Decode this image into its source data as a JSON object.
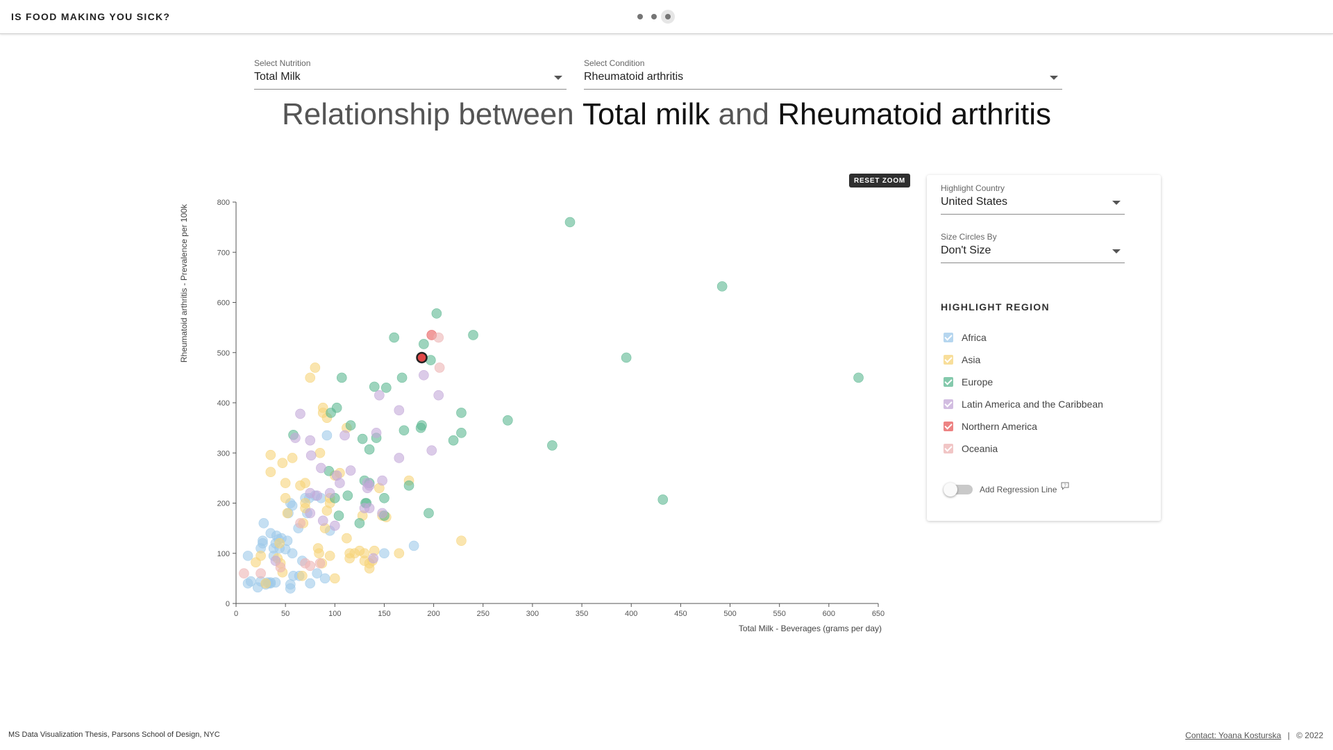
{
  "header": {
    "title": "IS FOOD MAKING YOU SICK?",
    "pager": {
      "count": 3,
      "active": 3
    }
  },
  "controls": {
    "nutrition": {
      "label": "Select Nutrition",
      "value": "Total Milk"
    },
    "condition": {
      "label": "Select Condition",
      "value": "Rheumatoid arthritis"
    }
  },
  "headline": {
    "prefix": "Relationship between",
    "nutrition": "Total milk",
    "joiner": "and",
    "condition": "Rheumatoid arthritis"
  },
  "reset_zoom_label": "RESET ZOOM",
  "panel": {
    "highlight_country": {
      "label": "Highlight Country",
      "value": "United States"
    },
    "size_circles": {
      "label": "Size Circles By",
      "value": "Don't Size"
    },
    "region_heading": "HIGHLIGHT REGION",
    "regions": [
      {
        "name": "Africa",
        "color": "#9ec9ea",
        "checked": true
      },
      {
        "name": "Asia",
        "color": "#f6d479",
        "checked": true
      },
      {
        "name": "Europe",
        "color": "#5cb891",
        "checked": true
      },
      {
        "name": "Latin America and the Caribbean",
        "color": "#c3a8d8",
        "checked": true
      },
      {
        "name": "Northern America",
        "color": "#e85a5a",
        "checked": true
      },
      {
        "name": "Oceania",
        "color": "#edb4b4",
        "checked": true
      }
    ],
    "regression_label": "Add Regression Line",
    "regression_on": false
  },
  "chart_data": {
    "type": "scatter",
    "xlabel": "Total Milk - Beverages (grams per day)",
    "ylabel": "Rheumatoid arthritis - Prevalence per 100k",
    "xlim": [
      0,
      650
    ],
    "ylim": [
      0,
      800
    ],
    "xticks": [
      0,
      50,
      100,
      150,
      200,
      250,
      300,
      350,
      400,
      450,
      500,
      550,
      600,
      650
    ],
    "yticks": [
      0,
      100,
      200,
      300,
      400,
      500,
      600,
      700,
      800
    ],
    "highlighted_point": {
      "x": 188,
      "y": 490,
      "region": "Northern America"
    },
    "series": [
      {
        "name": "Africa",
        "points": [
          [
            12,
            95
          ],
          [
            12,
            40
          ],
          [
            15,
            44
          ],
          [
            22,
            32
          ],
          [
            25,
            44
          ],
          [
            25,
            110
          ],
          [
            27,
            120
          ],
          [
            27,
            125
          ],
          [
            28,
            160
          ],
          [
            30,
            38
          ],
          [
            32,
            42
          ],
          [
            33,
            40
          ],
          [
            35,
            42
          ],
          [
            35,
            140
          ],
          [
            35,
            40
          ],
          [
            38,
            95
          ],
          [
            38,
            110
          ],
          [
            40,
            120
          ],
          [
            40,
            42
          ],
          [
            41,
            135
          ],
          [
            43,
            128
          ],
          [
            44,
            110
          ],
          [
            46,
            130
          ],
          [
            50,
            108
          ],
          [
            52,
            125
          ],
          [
            53,
            180
          ],
          [
            55,
            38
          ],
          [
            55,
            30
          ],
          [
            55,
            200
          ],
          [
            57,
            195
          ],
          [
            57,
            100
          ],
          [
            58,
            55
          ],
          [
            63,
            150
          ],
          [
            64,
            55
          ],
          [
            67,
            85
          ],
          [
            70,
            210
          ],
          [
            72,
            180
          ],
          [
            74,
            210
          ],
          [
            75,
            40
          ],
          [
            80,
            215
          ],
          [
            82,
            60
          ],
          [
            86,
            210
          ],
          [
            90,
            50
          ],
          [
            92,
            335
          ],
          [
            95,
            145
          ],
          [
            150,
            100
          ],
          [
            180,
            115
          ]
        ]
      },
      {
        "name": "Asia",
        "points": [
          [
            20,
            82
          ],
          [
            25,
            95
          ],
          [
            30,
            40
          ],
          [
            35,
            296
          ],
          [
            35,
            262
          ],
          [
            42,
            90
          ],
          [
            44,
            120
          ],
          [
            45,
            80
          ],
          [
            47,
            62
          ],
          [
            47,
            280
          ],
          [
            50,
            240
          ],
          [
            50,
            210
          ],
          [
            52,
            180
          ],
          [
            57,
            290
          ],
          [
            65,
            235
          ],
          [
            67,
            55
          ],
          [
            68,
            160
          ],
          [
            70,
            190
          ],
          [
            70,
            240
          ],
          [
            70,
            200
          ],
          [
            75,
            450
          ],
          [
            80,
            470
          ],
          [
            83,
            110
          ],
          [
            84,
            100
          ],
          [
            85,
            300
          ],
          [
            87,
            80
          ],
          [
            88,
            390
          ],
          [
            88,
            380
          ],
          [
            90,
            150
          ],
          [
            92,
            370
          ],
          [
            92,
            185
          ],
          [
            95,
            210
          ],
          [
            95,
            200
          ],
          [
            95,
            95
          ],
          [
            100,
            50
          ],
          [
            100,
            255
          ],
          [
            105,
            260
          ],
          [
            112,
            350
          ],
          [
            112,
            130
          ],
          [
            115,
            100
          ],
          [
            115,
            90
          ],
          [
            120,
            100
          ],
          [
            125,
            105
          ],
          [
            128,
            175
          ],
          [
            130,
            100
          ],
          [
            130,
            85
          ],
          [
            135,
            80
          ],
          [
            135,
            70
          ],
          [
            138,
            85
          ],
          [
            140,
            105
          ],
          [
            145,
            230
          ],
          [
            148,
            175
          ],
          [
            152,
            172
          ],
          [
            165,
            100
          ],
          [
            175,
            245
          ],
          [
            228,
            125
          ]
        ]
      },
      {
        "name": "Europe",
        "points": [
          [
            58,
            336
          ],
          [
            94,
            264
          ],
          [
            96,
            380
          ],
          [
            100,
            210
          ],
          [
            102,
            390
          ],
          [
            104,
            175
          ],
          [
            107,
            450
          ],
          [
            113,
            215
          ],
          [
            116,
            355
          ],
          [
            125,
            160
          ],
          [
            128,
            328
          ],
          [
            130,
            245
          ],
          [
            131,
            200
          ],
          [
            132,
            200
          ],
          [
            135,
            240
          ],
          [
            135,
            307
          ],
          [
            140,
            432
          ],
          [
            142,
            330
          ],
          [
            150,
            175
          ],
          [
            150,
            210
          ],
          [
            152,
            430
          ],
          [
            160,
            530
          ],
          [
            168,
            450
          ],
          [
            170,
            345
          ],
          [
            175,
            235
          ],
          [
            187,
            350
          ],
          [
            188,
            355
          ],
          [
            190,
            517
          ],
          [
            195,
            180
          ],
          [
            197,
            485
          ],
          [
            203,
            578
          ],
          [
            220,
            325
          ],
          [
            228,
            380
          ],
          [
            228,
            340
          ],
          [
            240,
            535
          ],
          [
            275,
            365
          ],
          [
            320,
            315
          ],
          [
            338,
            760
          ],
          [
            395,
            490
          ],
          [
            432,
            207
          ],
          [
            492,
            632
          ],
          [
            630,
            450
          ]
        ]
      },
      {
        "name": "Latin America and the Caribbean",
        "points": [
          [
            40,
            85
          ],
          [
            60,
            330
          ],
          [
            65,
            378
          ],
          [
            75,
            220
          ],
          [
            75,
            180
          ],
          [
            75,
            325
          ],
          [
            76,
            295
          ],
          [
            82,
            215
          ],
          [
            86,
            270
          ],
          [
            88,
            165
          ],
          [
            95,
            220
          ],
          [
            100,
            155
          ],
          [
            102,
            255
          ],
          [
            105,
            240
          ],
          [
            110,
            335
          ],
          [
            116,
            265
          ],
          [
            130,
            190
          ],
          [
            133,
            230
          ],
          [
            133,
            240
          ],
          [
            135,
            190
          ],
          [
            135,
            235
          ],
          [
            139,
            90
          ],
          [
            142,
            340
          ],
          [
            145,
            415
          ],
          [
            148,
            180
          ],
          [
            148,
            245
          ],
          [
            165,
            385
          ],
          [
            165,
            290
          ],
          [
            190,
            455
          ],
          [
            198,
            305
          ],
          [
            205,
            415
          ]
        ]
      },
      {
        "name": "Northern America",
        "points": [
          [
            198,
            535
          ]
        ]
      },
      {
        "name": "Oceania",
        "points": [
          [
            8,
            60
          ],
          [
            25,
            60
          ],
          [
            45,
            72
          ],
          [
            65,
            160
          ],
          [
            70,
            80
          ],
          [
            75,
            75
          ],
          [
            85,
            80
          ],
          [
            205,
            530
          ],
          [
            206,
            470
          ]
        ]
      }
    ]
  },
  "footer": {
    "left": "MS Data Visualization Thesis, Parsons School of Design, NYC",
    "contact": "Contact: Yoana Kosturska",
    "separator": "|",
    "copyright": "© 2022"
  }
}
